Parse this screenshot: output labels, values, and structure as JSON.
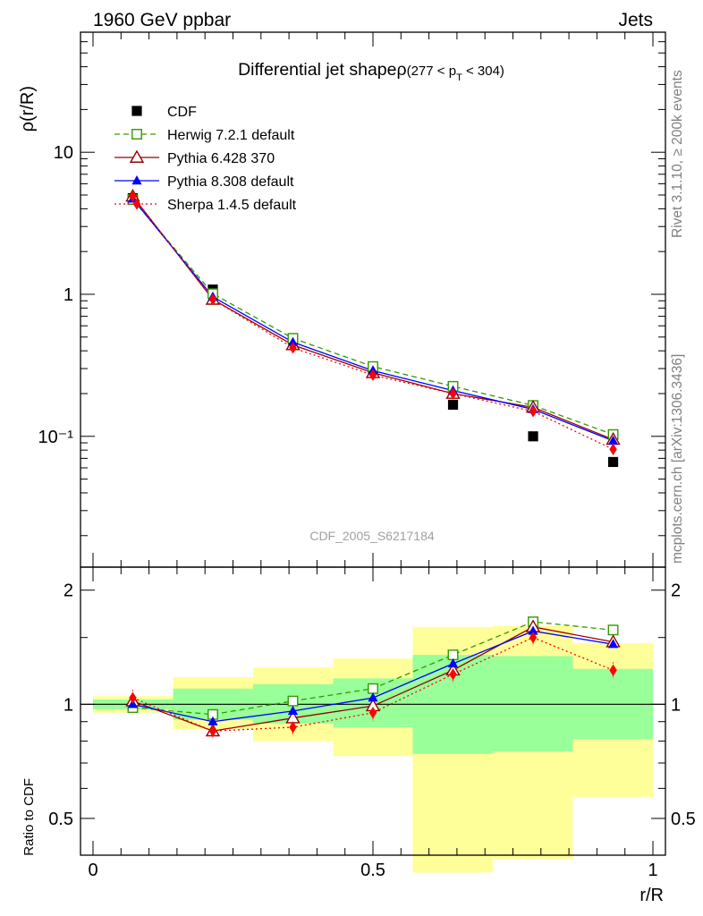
{
  "header": {
    "left": "1960 GeV ppbar",
    "right": "Jets",
    "side_top": "Rivet 3.1.10, ≥ 200k events",
    "side_bottom": "mcplots.cern.ch [arXiv:1306.3436]",
    "watermark": "CDF_2005_S6217184"
  },
  "title": {
    "main": "Differential jet shapeρ",
    "range_open": "(277 < p",
    "range_sub": "T",
    "range_close": " < 304)"
  },
  "axes": {
    "ylabel_top": "ρ(r/R)",
    "ylabel_bottom": "Ratio to CDF",
    "xlabel": "r/R",
    "top_ticks": [
      {
        "v": 10,
        "label": "10"
      },
      {
        "v": 1,
        "label": "1"
      },
      {
        "v": 0.1,
        "label": "10⁻¹"
      }
    ],
    "bottom_ticks": [
      {
        "v": 2,
        "label": "2"
      },
      {
        "v": 1,
        "label": "1"
      },
      {
        "v": 0.5,
        "label": "0.5"
      }
    ],
    "x_ticks": [
      {
        "v": 0,
        "label": "0"
      },
      {
        "v": 0.5,
        "label": "0.5"
      },
      {
        "v": 1,
        "label": "1"
      }
    ]
  },
  "colors": {
    "CDF": "#000000",
    "Herwig": "#339900",
    "Pythia6": "#990000",
    "Pythia8": "#0000ff",
    "Sherpa": "#ff0000",
    "band_outer": "#ffff99",
    "band_inner": "#99ff99"
  },
  "chart_data": {
    "type": "line",
    "title": "Differential jet shape ρ (277 < pT < 304)",
    "xlabel": "r/R",
    "ylabel": "ρ(r/R)",
    "yscale": "log",
    "xlim": [
      0,
      1
    ],
    "ylim": [
      0.012,
      70
    ],
    "ratio_ylim": [
      0.4,
      2.3
    ],
    "ratio_ylabel": "Ratio to CDF",
    "x": [
      0.071,
      0.214,
      0.357,
      0.5,
      0.643,
      0.786,
      0.929
    ],
    "bins": [
      [
        0.0,
        0.143
      ],
      [
        0.143,
        0.286
      ],
      [
        0.286,
        0.429
      ],
      [
        0.429,
        0.571
      ],
      [
        0.571,
        0.714
      ],
      [
        0.714,
        0.857
      ],
      [
        0.857,
        1.0
      ]
    ],
    "series": [
      {
        "name": "CDF",
        "style": "marker-square",
        "values": [
          4.75,
          1.08,
          0.48,
          0.283,
          0.167,
          0.1,
          0.066
        ]
      },
      {
        "name": "Herwig 7.2.1 default",
        "style": "open-square-dashed",
        "values": [
          4.65,
          1.01,
          0.49,
          0.31,
          0.225,
          0.165,
          0.103
        ]
      },
      {
        "name": "Pythia 6.428 370",
        "style": "open-triangle-solid",
        "values": [
          4.9,
          0.92,
          0.44,
          0.28,
          0.2,
          0.16,
          0.095
        ]
      },
      {
        "name": "Pythia 8.308 default",
        "style": "filled-triangle-solid",
        "values": [
          4.7,
          0.96,
          0.46,
          0.29,
          0.21,
          0.155,
          0.093
        ]
      },
      {
        "name": "Sherpa 1.4.5 default",
        "style": "filled-diamond-dotted",
        "values": [
          4.9,
          0.92,
          0.42,
          0.27,
          0.2,
          0.15,
          0.081
        ]
      }
    ],
    "ratio_series": [
      {
        "name": "Herwig 7.2.1 default",
        "values": [
          0.98,
          0.94,
          1.02,
          1.1,
          1.35,
          1.65,
          1.57
        ]
      },
      {
        "name": "Pythia 6.428 370",
        "values": [
          1.02,
          0.85,
          0.92,
          0.99,
          1.23,
          1.6,
          1.46
        ]
      },
      {
        "name": "Pythia 8.308 default",
        "values": [
          1.0,
          0.9,
          0.96,
          1.04,
          1.28,
          1.56,
          1.44
        ]
      },
      {
        "name": "Sherpa 1.4.5 default",
        "values": [
          1.04,
          0.85,
          0.87,
          0.95,
          1.2,
          1.5,
          1.23
        ]
      }
    ],
    "ratio_band_inner": [
      [
        0.97,
        1.03
      ],
      [
        0.91,
        1.1
      ],
      [
        0.89,
        1.13
      ],
      [
        0.87,
        1.17
      ],
      [
        0.74,
        1.35
      ],
      [
        0.75,
        1.34
      ],
      [
        0.81,
        1.24
      ]
    ],
    "ratio_band_outer": [
      [
        0.95,
        1.05
      ],
      [
        0.86,
        1.18
      ],
      [
        0.8,
        1.25
      ],
      [
        0.73,
        1.32
      ],
      [
        0.36,
        1.6
      ],
      [
        0.39,
        1.61
      ],
      [
        0.57,
        1.45
      ]
    ],
    "reference_line": 1.0
  }
}
